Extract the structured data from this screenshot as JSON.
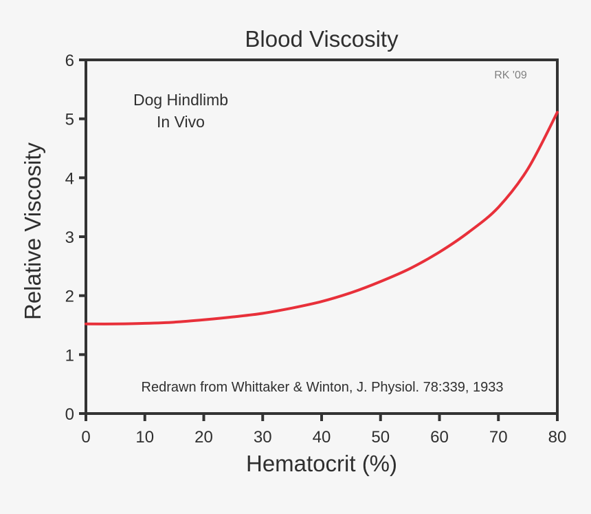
{
  "chart_data": {
    "type": "line",
    "title": "Blood Viscosity",
    "xlabel": "Hematocrit (%)",
    "ylabel": "Relative Viscosity",
    "xlim": [
      0,
      80
    ],
    "ylim": [
      0,
      6
    ],
    "x_ticks": [
      0,
      10,
      20,
      30,
      40,
      50,
      60,
      70,
      80
    ],
    "y_ticks": [
      0,
      1,
      2,
      3,
      4,
      5,
      6
    ],
    "grid": false,
    "legend": null,
    "annotations": [
      {
        "text": "Dog Hindlimb",
        "position": "upper-left"
      },
      {
        "text": "In Vivo",
        "position": "upper-left"
      },
      {
        "text": "RK '09",
        "position": "upper-right"
      },
      {
        "text": "Redrawn from Whittaker & Winton, J. Physiol. 78:339, 1933",
        "position": "bottom-center"
      }
    ],
    "series": [
      {
        "name": "Dog Hindlimb In Vivo",
        "color": "#e8303a",
        "x": [
          0,
          5,
          10,
          15,
          20,
          25,
          30,
          35,
          40,
          45,
          50,
          55,
          60,
          65,
          70,
          75,
          80
        ],
        "values": [
          1.52,
          1.52,
          1.53,
          1.55,
          1.59,
          1.64,
          1.7,
          1.79,
          1.9,
          2.05,
          2.24,
          2.46,
          2.74,
          3.08,
          3.5,
          4.15,
          5.11
        ]
      }
    ]
  },
  "labels": {
    "title": "Blood Viscosity",
    "xlabel": "Hematocrit (%)",
    "ylabel": "Relative Viscosity",
    "annotation_line1": "Dog Hindlimb",
    "annotation_line2": "In Vivo",
    "signature": "RK '09",
    "citation": "Redrawn from Whittaker & Winton, J. Physiol. 78:339, 1933"
  },
  "colors": {
    "background": "#f6f6f6",
    "axis": "#333333",
    "curve": "#e8303a",
    "text": "#2f2f2f",
    "signature": "#808080"
  }
}
